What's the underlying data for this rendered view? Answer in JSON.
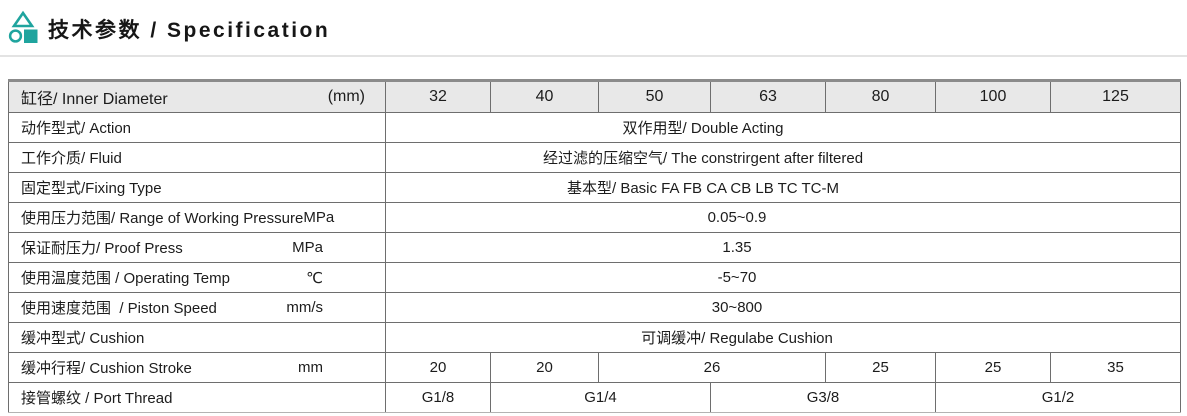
{
  "title": {
    "text": "技术参数 / Specification",
    "icon": "triangle-circle-square-logo"
  },
  "colors": {
    "accent_teal": "#1FA49E",
    "header_row_bg": "#E8E8E8",
    "grid_line": "#6E6E6E",
    "separator_light": "#E3E3E3",
    "text": "#1A1A1A"
  },
  "table": {
    "header_row": {
      "label": "缸径/ Inner Diameter",
      "unit": "(mm)",
      "diameters": [
        "32",
        "40",
        "50",
        "63",
        "80",
        "100",
        "125"
      ]
    },
    "rows": [
      {
        "label": "动作型式/ Action",
        "unit": "",
        "shift": "a",
        "cells": [
          {
            "text": "双作用型/ Double Acting",
            "span": 7
          }
        ]
      },
      {
        "label": "工作介质/ Fluid",
        "unit": "",
        "shift": "a",
        "cells": [
          {
            "text": "经过滤的压缩空气/  The constrirgent after filtered",
            "span": 7
          }
        ]
      },
      {
        "label": "固定型式/Fixing Type",
        "unit": "",
        "shift": "a",
        "cells": [
          {
            "text": "基本型/ Basic      FA    FB     CA  CB     LB     TC     TC-M",
            "span": 7
          }
        ]
      },
      {
        "label": "使用压力范围/ Range of Working Pressure",
        "unit": "MPa",
        "shift": "b",
        "cells": [
          {
            "text": "0.05~0.9",
            "span": 7
          }
        ]
      },
      {
        "label": "保证耐压力/ Proof Press",
        "unit": "MPa",
        "shift": "b",
        "cells": [
          {
            "text": "1.35",
            "span": 7
          }
        ]
      },
      {
        "label": "使用温度范围 / Operating Temp",
        "unit": "℃",
        "shift": "b",
        "cells": [
          {
            "text": "-5~70",
            "span": 7
          }
        ]
      },
      {
        "label": "使用速度范围  / Piston Speed",
        "unit": "mm/s",
        "shift": "b",
        "cells": [
          {
            "text": "30~800",
            "span": 7
          }
        ]
      },
      {
        "label": "缓冲型式/ Cushion",
        "unit": "",
        "shift": "b",
        "cells": [
          {
            "text": "可调缓冲/ Regulabe Cushion",
            "span": 7
          }
        ]
      },
      {
        "label": "缓冲行程/ Cushion Stroke",
        "unit": "mm",
        "shift": "",
        "cells": [
          {
            "text": "20",
            "span": 1
          },
          {
            "text": "20",
            "span": 1
          },
          {
            "text": "26",
            "span": 2
          },
          {
            "text": "25",
            "span": 1
          },
          {
            "text": "25",
            "span": 1
          },
          {
            "text": "35",
            "span": 1
          }
        ]
      },
      {
        "label": "接管螺纹 / Port Thread",
        "unit": "",
        "shift": "",
        "cells": [
          {
            "text": "G1/8",
            "span": 1
          },
          {
            "text": "G1/4",
            "span": 2
          },
          {
            "text": "G3/8",
            "span": 2
          },
          {
            "text": "G1/2",
            "span": 2
          }
        ]
      }
    ]
  }
}
